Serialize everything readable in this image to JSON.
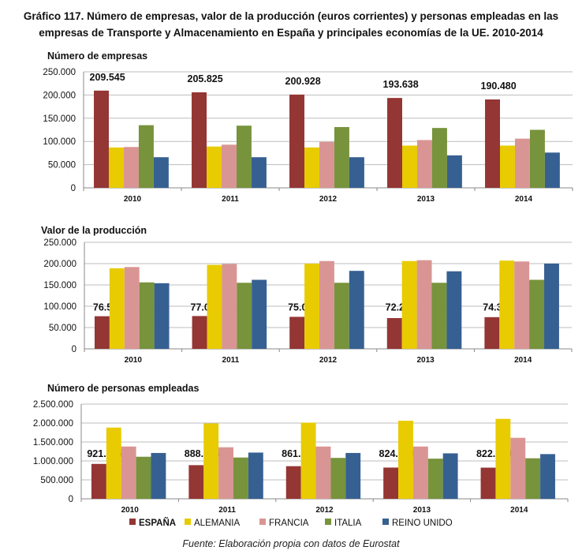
{
  "title": "Gráfico 117. Número de empresas, valor de la producción (euros corrientes) y personas empleadas en las empresas de Transporte y Almacenamiento en España y principales economías de la UE. 2010-2014",
  "source": "Fuente: Elaboración propia con datos de Eurostat",
  "legend": [
    {
      "name": "ESPAÑA",
      "color": "#943634"
    },
    {
      "name": "ALEMANIA",
      "color": "#E8CB00"
    },
    {
      "name": "FRANCIA",
      "color": "#D99594"
    },
    {
      "name": "ITALIA",
      "color": "#77933C"
    },
    {
      "name": "REINO UNIDO",
      "color": "#366092"
    }
  ],
  "chart_data": [
    {
      "type": "bar",
      "title": "Número de empresas",
      "categories": [
        "2010",
        "2011",
        "2012",
        "2013",
        "2014"
      ],
      "ylim": [
        0,
        250000
      ],
      "yticks": [
        "0",
        "50.000",
        "100.000",
        "150.000",
        "200.000",
        "250.000"
      ],
      "grid": true,
      "legend_position": "bottom",
      "series": [
        {
          "name": "ESPAÑA",
          "values": [
            209545,
            205825,
            200928,
            193638,
            190480
          ],
          "labels": [
            "209.545",
            "205.825",
            "200.928",
            "193.638",
            "190.480"
          ]
        },
        {
          "name": "ALEMANIA",
          "values": [
            87000,
            89000,
            87000,
            91000,
            91000
          ]
        },
        {
          "name": "FRANCIA",
          "values": [
            88000,
            93000,
            99000,
            103000,
            106000
          ]
        },
        {
          "name": "ITALIA",
          "values": [
            135000,
            134000,
            131000,
            129000,
            125000
          ]
        },
        {
          "name": "REINO UNIDO",
          "values": [
            66000,
            66000,
            66000,
            70000,
            76000
          ]
        }
      ]
    },
    {
      "type": "bar",
      "title": "Valor de la producción",
      "categories": [
        "2010",
        "2011",
        "2012",
        "2013",
        "2014"
      ],
      "ylim": [
        0,
        250000
      ],
      "yticks": [
        "0",
        "50.000",
        "100.000",
        "150.000",
        "200.000",
        "250.000"
      ],
      "grid": true,
      "series": [
        {
          "name": "ESPAÑA",
          "values": [
            76552,
            77003,
            75096,
            72252,
            74362
          ],
          "labels": [
            "76.552",
            "77.003",
            "75.096",
            "72.252",
            "74.362"
          ]
        },
        {
          "name": "ALEMANIA",
          "values": [
            189000,
            197000,
            200000,
            206000,
            207000
          ]
        },
        {
          "name": "FRANCIA",
          "values": [
            192000,
            199000,
            206000,
            208000,
            205000
          ]
        },
        {
          "name": "ITALIA",
          "values": [
            156000,
            155000,
            155000,
            155000,
            162000
          ]
        },
        {
          "name": "REINO UNIDO",
          "values": [
            154000,
            162000,
            183000,
            182000,
            200000
          ]
        }
      ]
    },
    {
      "type": "bar",
      "title": "Número de personas empleadas",
      "categories": [
        "2010",
        "2011",
        "2012",
        "2013",
        "2014"
      ],
      "ylim": [
        0,
        2500000
      ],
      "yticks": [
        "0",
        "500.000",
        "1.000.000",
        "1.500.000",
        "2.000.000",
        "2.500.000"
      ],
      "grid": true,
      "series": [
        {
          "name": "ESPAÑA",
          "values": [
            921035,
            888005,
            861297,
            824644,
            822509
          ],
          "labels": [
            "921.035",
            "888.005",
            "861.297",
            "824.644",
            "822.509"
          ]
        },
        {
          "name": "ALEMANIA",
          "values": [
            1880000,
            1990000,
            2010000,
            2060000,
            2110000
          ]
        },
        {
          "name": "FRANCIA",
          "values": [
            1380000,
            1360000,
            1380000,
            1380000,
            1610000
          ]
        },
        {
          "name": "ITALIA",
          "values": [
            1110000,
            1090000,
            1080000,
            1060000,
            1070000
          ]
        },
        {
          "name": "REINO UNIDO",
          "values": [
            1210000,
            1220000,
            1210000,
            1200000,
            1180000
          ]
        }
      ]
    }
  ]
}
